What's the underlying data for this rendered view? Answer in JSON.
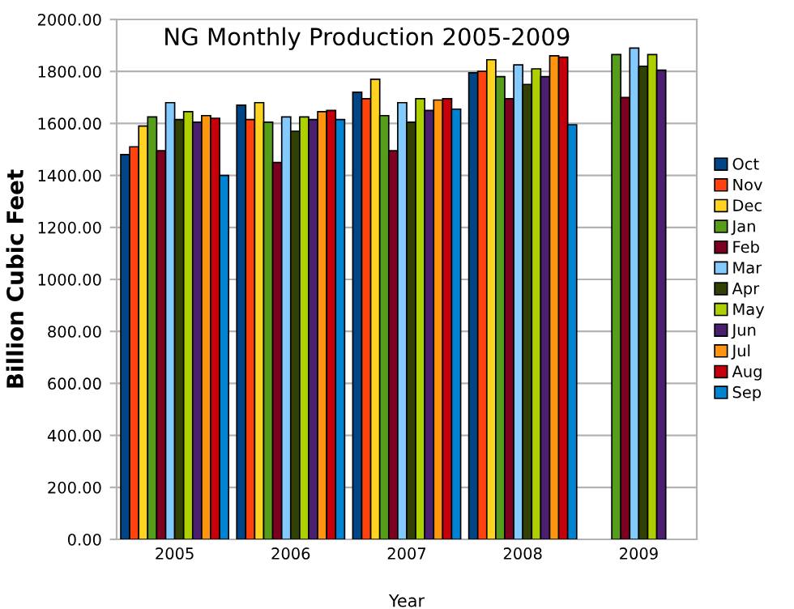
{
  "chart_data": {
    "type": "bar",
    "title": "NG Monthly Production 2005-2009",
    "xlabel": "Year",
    "ylabel": "Billion Cubic Feet",
    "categories": [
      "2005",
      "2006",
      "2007",
      "2008",
      "2009"
    ],
    "series": [
      {
        "name": "Oct",
        "color": "#004586",
        "values": [
          1480,
          1670,
          1720,
          1795,
          null
        ]
      },
      {
        "name": "Nov",
        "color": "#ff420e",
        "values": [
          1510,
          1615,
          1695,
          1800,
          null
        ]
      },
      {
        "name": "Dec",
        "color": "#ffd320",
        "values": [
          1590,
          1680,
          1770,
          1845,
          null
        ]
      },
      {
        "name": "Jan",
        "color": "#579d1c",
        "values": [
          1625,
          1605,
          1630,
          1780,
          1865
        ]
      },
      {
        "name": "Feb",
        "color": "#7e0021",
        "values": [
          1495,
          1450,
          1495,
          1695,
          1700
        ]
      },
      {
        "name": "Mar",
        "color": "#83caff",
        "values": [
          1680,
          1625,
          1680,
          1825,
          1890
        ]
      },
      {
        "name": "Apr",
        "color": "#314004",
        "values": [
          1615,
          1570,
          1605,
          1750,
          1820
        ]
      },
      {
        "name": "May",
        "color": "#aecf00",
        "values": [
          1645,
          1625,
          1695,
          1810,
          1865
        ]
      },
      {
        "name": "Jun",
        "color": "#4b1f6f",
        "values": [
          1605,
          1615,
          1650,
          1780,
          1805
        ]
      },
      {
        "name": "Jul",
        "color": "#ff950e",
        "values": [
          1630,
          1645,
          1690,
          1860,
          null
        ]
      },
      {
        "name": "Aug",
        "color": "#c5000b",
        "values": [
          1620,
          1650,
          1695,
          1855,
          null
        ]
      },
      {
        "name": "Sep",
        "color": "#0084d1",
        "values": [
          1400,
          1615,
          1655,
          1595,
          null
        ]
      }
    ],
    "ylim": [
      0,
      2000
    ],
    "yticks": [
      {
        "value": 0,
        "label": "0.00"
      },
      {
        "value": 200,
        "label": "200.00"
      },
      {
        "value": 400,
        "label": "400.00"
      },
      {
        "value": 600,
        "label": "600.00"
      },
      {
        "value": 800,
        "label": "800.00"
      },
      {
        "value": 1000,
        "label": "1000.00"
      },
      {
        "value": 1200,
        "label": "1200.00"
      },
      {
        "value": 1400,
        "label": "1400.00"
      },
      {
        "value": 1600,
        "label": "1600.00"
      },
      {
        "value": 1800,
        "label": "1800.00"
      },
      {
        "value": 2000,
        "label": "2000.00"
      }
    ],
    "grid": "y",
    "legend": "right"
  }
}
